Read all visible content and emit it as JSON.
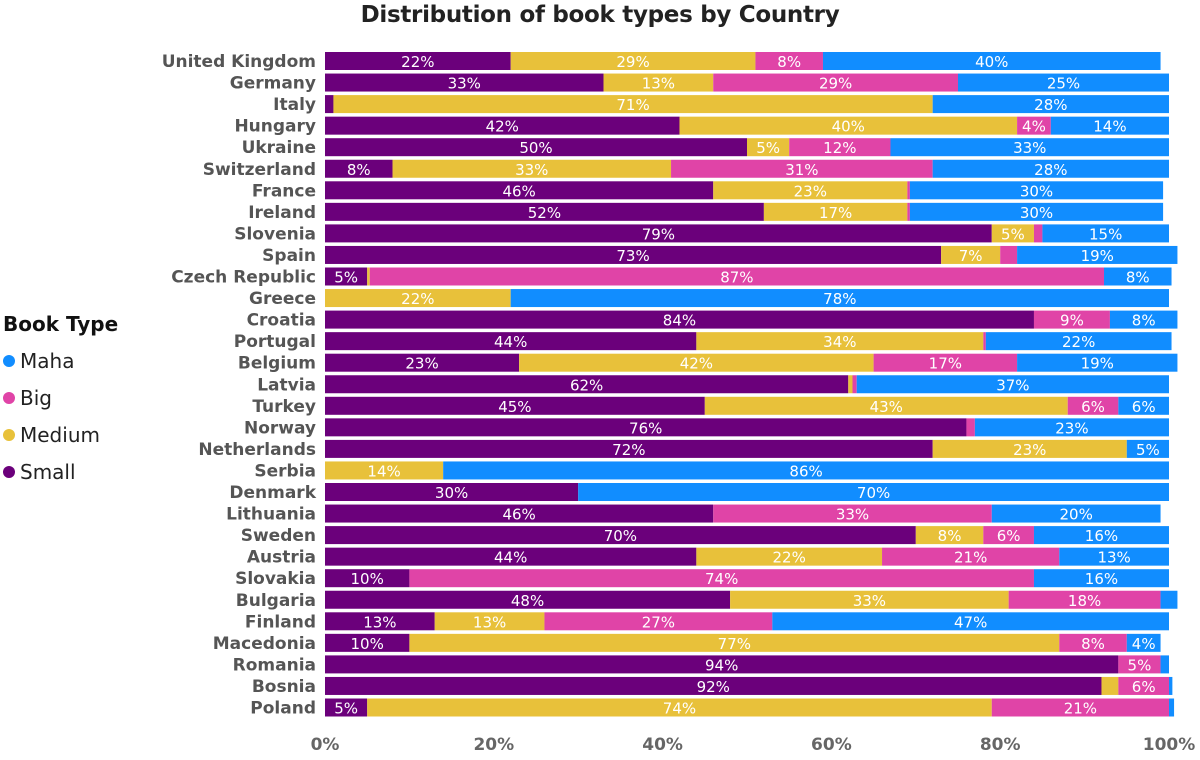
{
  "chart_data": {
    "type": "bar",
    "orientation": "horizontal",
    "stacked": "100%",
    "title": "Distribution of book types by Country",
    "legend_title": "Book Type",
    "legend_position": "left",
    "xlim": [
      0,
      100
    ],
    "x_ticks": [
      "0%",
      "20%",
      "40%",
      "60%",
      "80%",
      "100%"
    ],
    "grid": false,
    "categories": [
      "United Kingdom",
      "Germany",
      "Italy",
      "Hungary",
      "Ukraine",
      "Switzerland",
      "France",
      "Ireland",
      "Slovenia",
      "Spain",
      "Czech Republic",
      "Greece",
      "Croatia",
      "Portugal",
      "Belgium",
      "Latvia",
      "Turkey",
      "Norway",
      "Netherlands",
      "Serbia",
      "Denmark",
      "Lithuania",
      "Sweden",
      "Austria",
      "Slovakia",
      "Bulgaria",
      "Finland",
      "Macedonia",
      "Romania",
      "Bosnia",
      "Poland"
    ],
    "legend_order": [
      "Maha",
      "Big",
      "Medium",
      "Small"
    ],
    "series": [
      {
        "name": "Small",
        "color": "#6B007B",
        "values": [
          22,
          33,
          1,
          42,
          50,
          8,
          46,
          52,
          79,
          73,
          5,
          0,
          84,
          44,
          23,
          62,
          45,
          76,
          72,
          0,
          30,
          46,
          70,
          44,
          10,
          48,
          13,
          10,
          94,
          92,
          5
        ]
      },
      {
        "name": "Medium",
        "color": "#E8C13A",
        "values": [
          29,
          13,
          71,
          40,
          5,
          33,
          23,
          17,
          5,
          7,
          0.3,
          22,
          0,
          34,
          42,
          0.5,
          43,
          0,
          23,
          14,
          0,
          0,
          8,
          22,
          0,
          33,
          13,
          77,
          0,
          2,
          74
        ]
      },
      {
        "name": "Big",
        "color": "#E044A7",
        "values": [
          8,
          29,
          0,
          4,
          12,
          31,
          0.3,
          0.3,
          1,
          2,
          87,
          0,
          9,
          0.3,
          17,
          0.5,
          6,
          1,
          0,
          0,
          0,
          33,
          6,
          21,
          74,
          18,
          27,
          8,
          5,
          6,
          21
        ]
      },
      {
        "name": "Maha",
        "color": "#118DFF",
        "values": [
          40,
          25,
          28,
          14,
          33,
          28,
          30,
          30,
          15,
          19,
          8,
          78,
          8,
          22,
          19,
          37,
          6,
          23,
          5,
          86,
          70,
          20,
          16,
          13,
          16,
          2,
          47,
          4,
          1,
          0.4,
          0.6
        ]
      }
    ]
  }
}
